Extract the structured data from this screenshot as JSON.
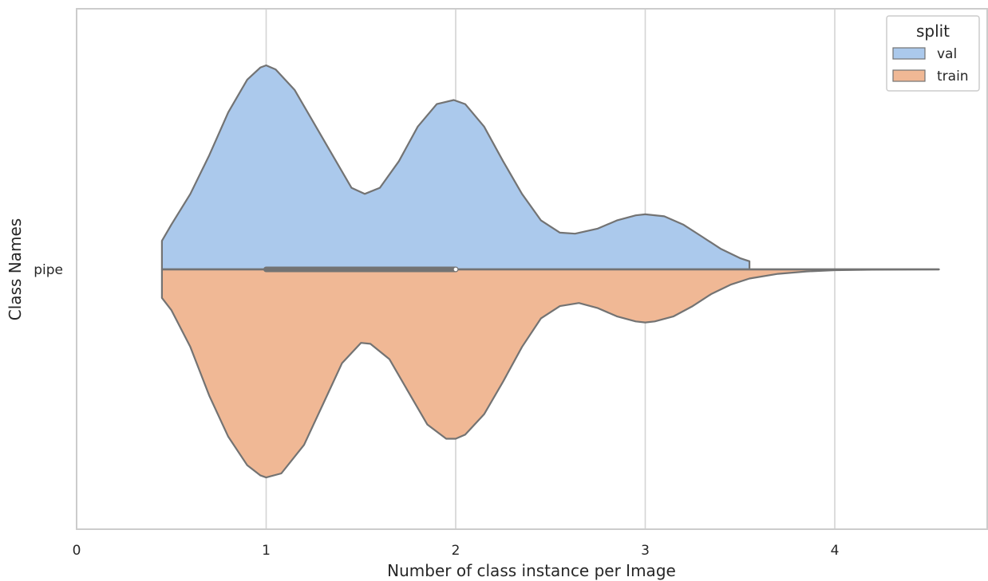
{
  "chart_data": {
    "type": "violin",
    "orientation": "horizontal",
    "split": true,
    "xlabel": "Number of class instance per Image",
    "ylabel": "Class Names",
    "xlim": [
      0,
      4.8
    ],
    "xticks": [
      0,
      1,
      2,
      3,
      4
    ],
    "categories": [
      "pipe"
    ],
    "grid": "vertical",
    "legend": {
      "title": "split",
      "position": "top-right"
    },
    "series": [
      {
        "name": "val",
        "color": "#abc9ec",
        "side": "upper",
        "density": [
          [
            0.45,
            0.14
          ],
          [
            0.5,
            0.22
          ],
          [
            0.6,
            0.37
          ],
          [
            0.7,
            0.56
          ],
          [
            0.8,
            0.77
          ],
          [
            0.9,
            0.93
          ],
          [
            0.97,
            0.99
          ],
          [
            1.0,
            1.0
          ],
          [
            1.05,
            0.98
          ],
          [
            1.15,
            0.88
          ],
          [
            1.25,
            0.72
          ],
          [
            1.35,
            0.56
          ],
          [
            1.45,
            0.4
          ],
          [
            1.52,
            0.37
          ],
          [
            1.6,
            0.4
          ],
          [
            1.7,
            0.53
          ],
          [
            1.8,
            0.7
          ],
          [
            1.9,
            0.81
          ],
          [
            1.99,
            0.83
          ],
          [
            2.05,
            0.81
          ],
          [
            2.15,
            0.7
          ],
          [
            2.25,
            0.53
          ],
          [
            2.35,
            0.37
          ],
          [
            2.45,
            0.24
          ],
          [
            2.55,
            0.18
          ],
          [
            2.63,
            0.175
          ],
          [
            2.75,
            0.2
          ],
          [
            2.85,
            0.24
          ],
          [
            2.95,
            0.265
          ],
          [
            3.0,
            0.27
          ],
          [
            3.1,
            0.26
          ],
          [
            3.2,
            0.22
          ],
          [
            3.3,
            0.16
          ],
          [
            3.4,
            0.1
          ],
          [
            3.5,
            0.055
          ],
          [
            3.55,
            0.04
          ]
        ]
      },
      {
        "name": "train",
        "color": "#f0b895",
        "side": "lower",
        "density": [
          [
            0.45,
            0.14
          ],
          [
            0.5,
            0.2
          ],
          [
            0.6,
            0.38
          ],
          [
            0.7,
            0.62
          ],
          [
            0.8,
            0.82
          ],
          [
            0.9,
            0.96
          ],
          [
            0.97,
            1.01
          ],
          [
            1.0,
            1.02
          ],
          [
            1.08,
            1.0
          ],
          [
            1.2,
            0.86
          ],
          [
            1.3,
            0.66
          ],
          [
            1.4,
            0.46
          ],
          [
            1.5,
            0.36
          ],
          [
            1.55,
            0.365
          ],
          [
            1.65,
            0.44
          ],
          [
            1.75,
            0.6
          ],
          [
            1.85,
            0.76
          ],
          [
            1.95,
            0.83
          ],
          [
            2.0,
            0.83
          ],
          [
            2.05,
            0.81
          ],
          [
            2.15,
            0.71
          ],
          [
            2.25,
            0.55
          ],
          [
            2.35,
            0.38
          ],
          [
            2.45,
            0.24
          ],
          [
            2.55,
            0.18
          ],
          [
            2.65,
            0.165
          ],
          [
            2.75,
            0.19
          ],
          [
            2.85,
            0.23
          ],
          [
            2.95,
            0.255
          ],
          [
            3.0,
            0.26
          ],
          [
            3.05,
            0.255
          ],
          [
            3.15,
            0.23
          ],
          [
            3.25,
            0.18
          ],
          [
            3.35,
            0.12
          ],
          [
            3.45,
            0.075
          ],
          [
            3.55,
            0.045
          ],
          [
            3.7,
            0.022
          ],
          [
            3.85,
            0.01
          ],
          [
            4.0,
            0.004
          ],
          [
            4.2,
            0.0015
          ],
          [
            4.55,
            0
          ]
        ]
      }
    ],
    "box": {
      "q1": 1,
      "q3": 2,
      "median": 2,
      "whisker_low": 0.45,
      "whisker_high": 4.55
    }
  }
}
